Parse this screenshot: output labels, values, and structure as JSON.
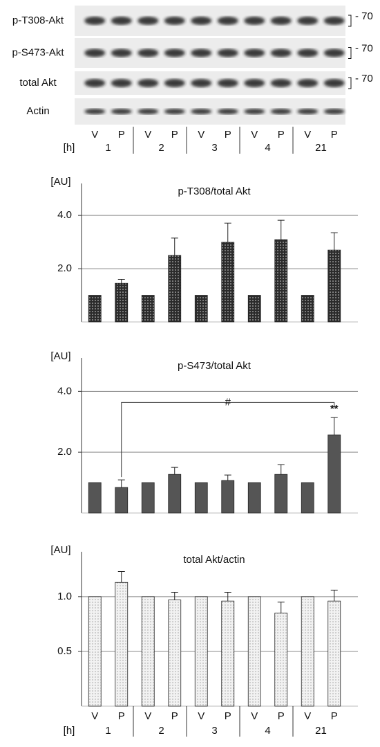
{
  "blot": {
    "rows": [
      {
        "label": "p-T308-Akt",
        "marker": "- 70"
      },
      {
        "label": "p-S473-Akt",
        "marker": "- 70"
      },
      {
        "label": "total Akt",
        "marker": "- 70"
      },
      {
        "label": "Actin"
      }
    ],
    "lanes": [
      "V",
      "P",
      "V",
      "P",
      "V",
      "P",
      "V",
      "P",
      "V",
      "P"
    ],
    "time_label": "[h]",
    "times": [
      "1",
      "2",
      "3",
      "4",
      "21"
    ]
  },
  "chart_data": [
    {
      "type": "bar",
      "title": "p-T308/total Akt",
      "y_label": "[AU]",
      "values": [
        1,
        1.45,
        1,
        2.5,
        1,
        2.99,
        1,
        3.09,
        1,
        2.7
      ],
      "errors": [
        null,
        0.15,
        null,
        0.65,
        null,
        0.72,
        null,
        0.73,
        null,
        0.65
      ],
      "color": "#2b2b2b",
      "pattern": "dots",
      "ylim": [
        0,
        5.2
      ],
      "yticks": [
        {
          "value": 2,
          "label": "2.0"
        },
        {
          "value": 4,
          "label": "4.0"
        }
      ],
      "grid": true
    },
    {
      "type": "bar",
      "title": "p-S473/total Akt",
      "y_label": "[AU]",
      "values": [
        1,
        0.84,
        1,
        1.27,
        1,
        1.07,
        1,
        1.27,
        1,
        2.57
      ],
      "errors": [
        null,
        0.25,
        null,
        0.23,
        null,
        0.18,
        null,
        0.32,
        null,
        0.57
      ],
      "color": "#555555",
      "pattern": "none",
      "ylim": [
        0,
        5.1
      ],
      "yticks": [
        {
          "value": 2,
          "label": "2.0"
        },
        {
          "value": 4,
          "label": "4.0"
        }
      ],
      "grid": true,
      "bracket_label": "#",
      "significance_label": "**"
    },
    {
      "type": "bar",
      "title": "total Akt/actin",
      "y_label": "[AU]",
      "categories": [
        "V",
        "P",
        "V",
        "P",
        "V",
        "P",
        "V",
        "P",
        "V",
        "P"
      ],
      "group_label": "[h]",
      "groups": [
        "1",
        "2",
        "3",
        "4",
        "21"
      ],
      "values": [
        1,
        1.13,
        1,
        0.97,
        1,
        0.96,
        1,
        0.85,
        1,
        0.96
      ],
      "errors": [
        null,
        0.1,
        null,
        0.07,
        null,
        0.08,
        null,
        0.1,
        null,
        0.1
      ],
      "color": "#f2f2f2",
      "pattern": "dots",
      "ylim": [
        0,
        1.41
      ],
      "yticks": [
        {
          "value": 0.5,
          "label": "0.5"
        },
        {
          "value": 1,
          "label": "1.0"
        }
      ],
      "grid": true
    }
  ]
}
